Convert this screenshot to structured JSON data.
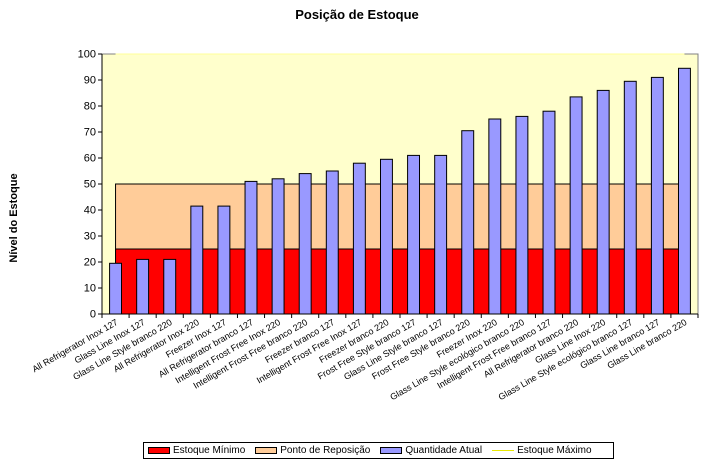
{
  "chart_data": {
    "type": "bar",
    "title": "Posição de Estoque",
    "ylabel": "Nível do Estoque",
    "xlabel": "",
    "ylim": [
      0,
      100
    ],
    "ytick_step": 10,
    "grid": false,
    "legend_position": "bottom",
    "categories": [
      "All Refrigerator Inox 127",
      "Glass Line Inox 127",
      "Glass Line Style branco 220",
      "All Refrigerator Inox 220",
      "Freezer Inox 127",
      "All Refrigerator branco 127",
      "Intelligent Frost Free Inox 220",
      "Intelligent Frost Free branco 220",
      "Freezer branco 127",
      "Intelligent Frost Free Inox 127",
      "Freezer branco 220",
      "Frost Free Style branco 127",
      "Glass Line Style branco 127",
      "Frost Free Style branco 220",
      "Freezer Inox 220",
      "Glass Line Style ecológico branco 220",
      "Intelligent Frost Free branco 127",
      "All Refrigerator branco 220",
      "Glass Line Inox 220",
      "Glass Line Style ecológico branco 127",
      "Glass Line branco 127",
      "Glass Line branco 220"
    ],
    "series": [
      {
        "name": "Estoque Mínimo",
        "kind": "area",
        "color": "#ff0000",
        "values": [
          25,
          25,
          25,
          25,
          25,
          25,
          25,
          25,
          25,
          25,
          25,
          25,
          25,
          25,
          25,
          25,
          25,
          25,
          25,
          25,
          25,
          25
        ]
      },
      {
        "name": "Ponto de Reposição",
        "kind": "area",
        "color": "#ffcc99",
        "values": [
          50,
          50,
          50,
          50,
          50,
          50,
          50,
          50,
          50,
          50,
          50,
          50,
          50,
          50,
          50,
          50,
          50,
          50,
          50,
          50,
          50,
          50
        ]
      },
      {
        "name": "Quantidade Atual",
        "kind": "bar",
        "color": "#9999ff",
        "values": [
          19.5,
          21,
          21,
          41.5,
          41.5,
          51,
          52,
          54,
          55,
          58,
          59.5,
          61,
          61,
          70.5,
          75,
          76,
          78,
          83.5,
          86,
          89.5,
          91,
          94.5
        ]
      },
      {
        "name": "Estoque Máximo",
        "kind": "area",
        "color": "#ffffcc",
        "values": [
          100,
          100,
          100,
          100,
          100,
          100,
          100,
          100,
          100,
          100,
          100,
          100,
          100,
          100,
          100,
          100,
          100,
          100,
          100,
          100,
          100,
          100
        ]
      }
    ],
    "yticks": [
      "0",
      "10",
      "20",
      "30",
      "40",
      "50",
      "60",
      "70",
      "80",
      "90",
      "100"
    ],
    "colors": {
      "plot_border": "#808080",
      "axis": "#000000",
      "max_line": "#ffff99",
      "bar_edge": "#000000"
    }
  }
}
